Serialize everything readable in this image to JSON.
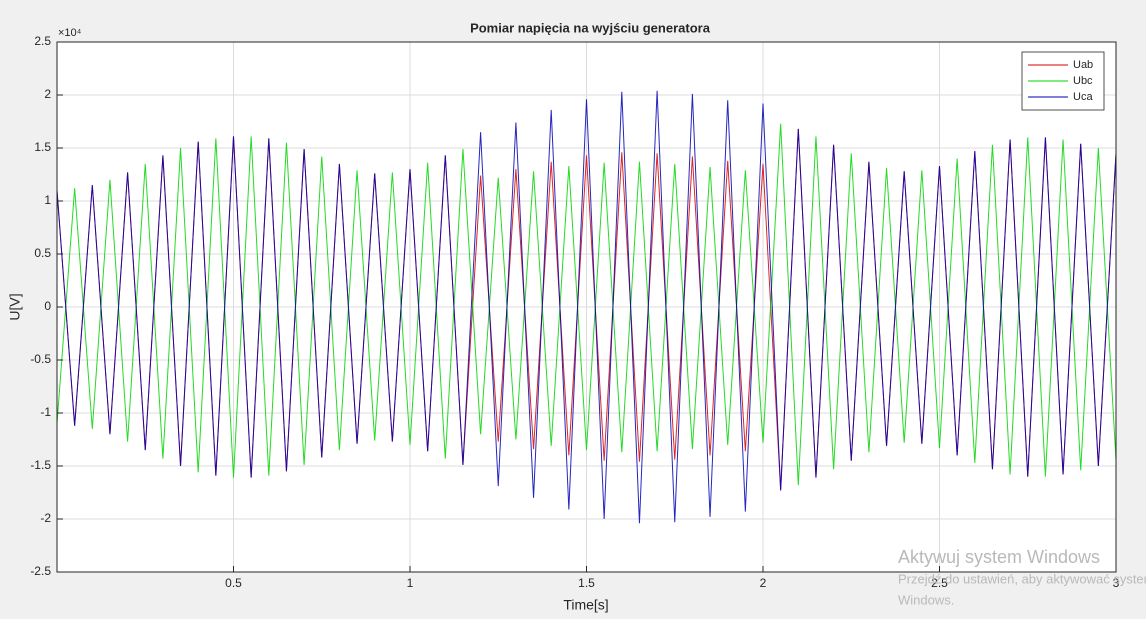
{
  "chart_data": {
    "type": "line",
    "title": "Pomiar napięcia na wyjściu generatora",
    "x_label": "Time[s]",
    "y_label": "U[V]",
    "y_exponent": "×10⁴",
    "xlim": [
      0,
      3
    ],
    "xticks": [
      0.5,
      1,
      1.5,
      2,
      2.5,
      3
    ],
    "ylim": [
      -25000,
      25000
    ],
    "yticks": [
      {
        "value": -25000,
        "label": "-2.5"
      },
      {
        "value": -20000,
        "label": "-2"
      },
      {
        "value": -15000,
        "label": "-1.5"
      },
      {
        "value": -10000,
        "label": "-1"
      },
      {
        "value": -5000,
        "label": "-0.5"
      },
      0,
      {
        "value": 5000,
        "label": "0.5"
      },
      {
        "value": 10000,
        "label": "1"
      },
      {
        "value": 15000,
        "label": "1.5"
      },
      {
        "value": 20000,
        "label": "2"
      },
      {
        "value": 25000,
        "label": "2.5"
      }
    ],
    "grid": true,
    "legend": "upper right",
    "x": [
      0,
      0.05,
      0.1,
      0.15,
      0.2,
      0.25,
      0.3,
      0.35,
      0.4,
      0.45,
      0.5,
      0.55,
      0.6,
      0.65,
      0.7,
      0.75,
      0.8,
      0.85,
      0.9,
      0.95,
      1,
      1.05,
      1.1,
      1.15,
      1.2,
      1.25,
      1.3,
      1.35,
      1.4,
      1.45,
      1.5,
      1.55,
      1.6,
      1.65,
      1.7,
      1.75,
      1.8,
      1.85,
      1.9,
      1.95,
      2,
      2.05,
      2.1,
      2.15,
      2.2,
      2.25,
      2.3,
      2.35,
      2.4,
      2.45,
      2.5,
      2.55,
      2.6,
      2.65,
      2.7,
      2.75,
      2.8,
      2.85,
      2.9,
      2.95,
      3
    ],
    "series": [
      {
        "name": "Uab",
        "color": "#d40000",
        "values": [
          11000,
          -11200,
          11500,
          -12000,
          12700,
          -13500,
          14300,
          -15000,
          15600,
          -15900,
          16100,
          -16100,
          15900,
          -15500,
          14900,
          -14200,
          13500,
          -12900,
          12600,
          -12700,
          13000,
          -13600,
          14300,
          -14900,
          12400,
          -12700,
          13000,
          -13400,
          13700,
          -14000,
          14300,
          -14500,
          14600,
          -14600,
          14500,
          -14400,
          14200,
          -14000,
          13800,
          -13600,
          13500,
          -17300,
          16800,
          -16100,
          15300,
          -14500,
          13700,
          -13100,
          12800,
          -12900,
          13300,
          -14000,
          14700,
          -15300,
          15800,
          -16000,
          16000,
          -15800,
          15400,
          -15000,
          14500
        ]
      },
      {
        "name": "Ubc",
        "color": "#00d400",
        "values": [
          -11000,
          11200,
          -11500,
          12000,
          -12700,
          13500,
          -14300,
          15000,
          -15600,
          15900,
          -16100,
          16100,
          -15900,
          15500,
          -14900,
          14200,
          -13500,
          12900,
          -12600,
          12700,
          -13000,
          13600,
          -14300,
          14900,
          -12000,
          12200,
          -12500,
          12800,
          -13100,
          13300,
          -13500,
          13600,
          -13700,
          13700,
          -13600,
          13500,
          -13400,
          13200,
          -13000,
          12900,
          -12800,
          17300,
          -16800,
          16100,
          -15300,
          14500,
          -13700,
          13100,
          -12800,
          12900,
          -13300,
          14000,
          -14700,
          15300,
          -15800,
          16000,
          -16000,
          15800,
          -15400,
          15000,
          -14500
        ]
      },
      {
        "name": "Uca",
        "color": "#0000b4",
        "values": [
          11000,
          -11200,
          11500,
          -12000,
          12700,
          -13500,
          14300,
          -15000,
          15600,
          -15900,
          16100,
          -16100,
          15900,
          -15500,
          14900,
          -14200,
          13500,
          -12900,
          12600,
          -12700,
          13000,
          -13600,
          14300,
          -14900,
          16500,
          -16900,
          17400,
          -18000,
          18600,
          -19100,
          19600,
          -20000,
          20300,
          -20400,
          20400,
          -20300,
          20100,
          -19800,
          19500,
          -19300,
          19200,
          -17300,
          16800,
          -16100,
          15300,
          -14500,
          13700,
          -13100,
          12800,
          -12900,
          13300,
          -14000,
          14700,
          -15300,
          15800,
          -16000,
          16000,
          -15800,
          15400,
          -15000,
          14500
        ]
      }
    ]
  },
  "watermark": {
    "title": "Aktywuj system Windows",
    "lines": [
      "Przejdź do ustawień, aby aktywować system",
      "Windows."
    ]
  }
}
